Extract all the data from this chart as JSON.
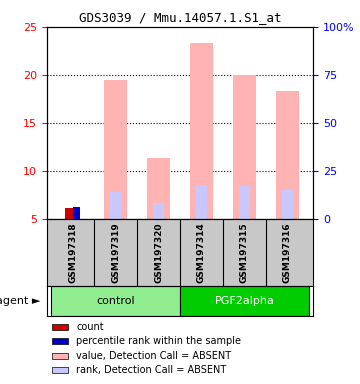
{
  "title": "GDS3039 / Mmu.14057.1.S1_at",
  "samples": [
    "GSM197318",
    "GSM197319",
    "GSM197320",
    "GSM197314",
    "GSM197315",
    "GSM197316"
  ],
  "groups": [
    "control",
    "control",
    "control",
    "PGF2alpha",
    "PGF2alpha",
    "PGF2alpha"
  ],
  "count_values": [
    6.2,
    null,
    null,
    null,
    null,
    null
  ],
  "percentile_values": [
    6.3,
    null,
    null,
    null,
    null,
    null
  ],
  "absent_value_bars": [
    null,
    19.5,
    11.4,
    23.3,
    20.0,
    18.3
  ],
  "absent_rank_bars": [
    null,
    7.9,
    6.7,
    8.6,
    8.5,
    8.1
  ],
  "ylim": [
    5,
    25
  ],
  "yticks": [
    5,
    10,
    15,
    20,
    25
  ],
  "y2ticks": [
    0,
    25,
    50,
    75,
    100
  ],
  "y2labels": [
    "0",
    "25",
    "50",
    "75",
    "100%"
  ],
  "bar_width": 0.4,
  "absent_bar_color": "#ffb3b3",
  "absent_rank_color": "#c8c8ff",
  "count_color": "#cc0000",
  "percentile_color": "#0000cc",
  "control_color": "#90ee90",
  "pgf2alpha_color": "#00cc00",
  "group_bg_color": "#c8c8c8",
  "legend_items": [
    {
      "color": "#cc0000",
      "label": "count"
    },
    {
      "color": "#0000cc",
      "label": "percentile rank within the sample"
    },
    {
      "color": "#ffb3b3",
      "label": "value, Detection Call = ABSENT"
    },
    {
      "color": "#c8c8ff",
      "label": "rank, Detection Call = ABSENT"
    }
  ]
}
